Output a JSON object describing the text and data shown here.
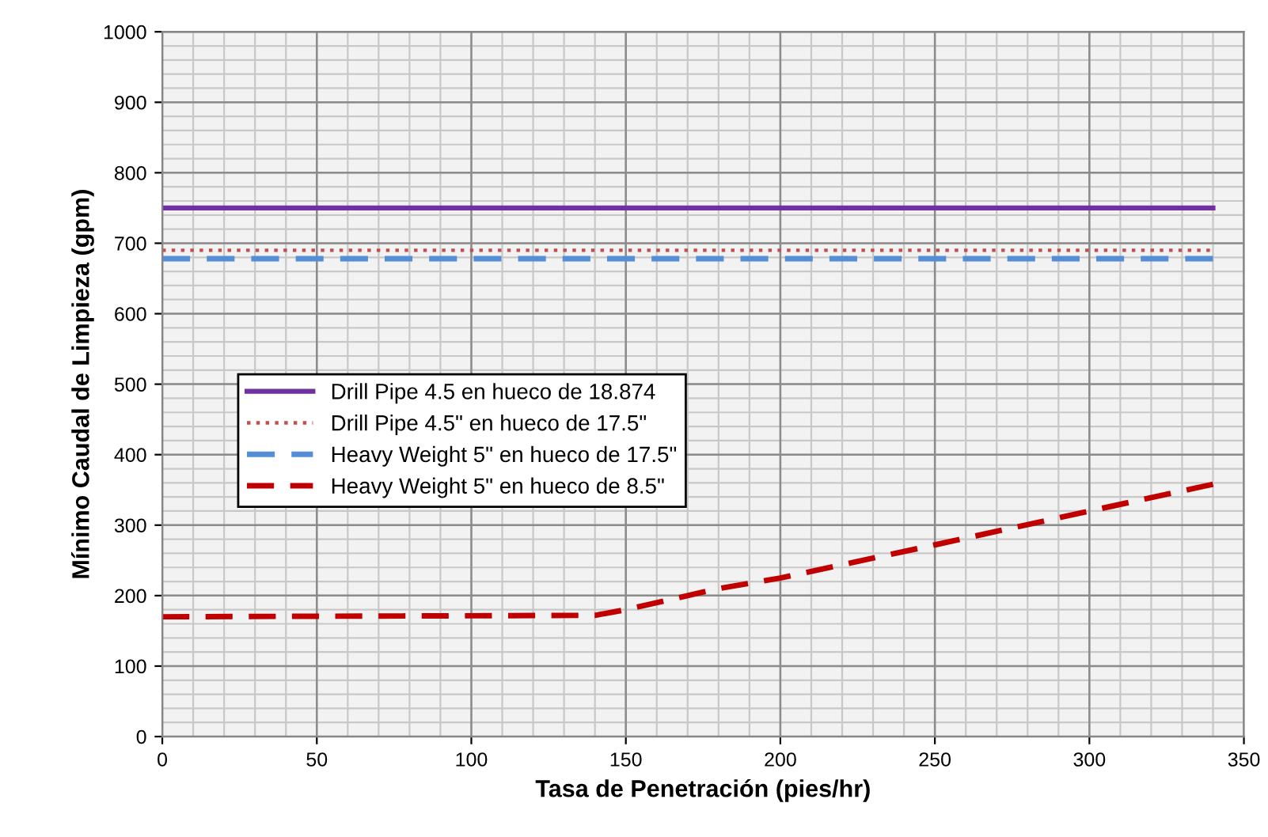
{
  "chart_data": {
    "type": "line",
    "xlabel": "Tasa de Penetración (pies/hr)",
    "ylabel": "Mínimo Caudal de Limpieza (gpm)",
    "xlim": [
      0,
      350
    ],
    "xticks": [
      0,
      50,
      100,
      150,
      200,
      250,
      300,
      350
    ],
    "ylim": [
      0,
      1000
    ],
    "yticks": [
      0,
      100,
      200,
      300,
      400,
      500,
      600,
      700,
      800,
      900,
      1000
    ],
    "grid": true,
    "legend": "center left",
    "marker": "none",
    "series": [
      {
        "name": "Drill Pipe 4.5 en hueco de 18.874",
        "color": "#7030a0",
        "line_style": "solid",
        "x": [
          0,
          340
        ],
        "values": [
          750,
          750
        ]
      },
      {
        "name": "Drill Pipe 4.5\" en hueco de 17.5\"",
        "color": "#c0504d",
        "line_style": "dotted",
        "x": [
          0,
          340
        ],
        "values": [
          690,
          690
        ]
      },
      {
        "name": "Heavy Weight 5\" en hueco de 17.5\"",
        "color": "#558ed5",
        "line_style": "dashed",
        "x": [
          0,
          340
        ],
        "values": [
          678,
          678
        ]
      },
      {
        "name": "Heavy Weight 5\" en hueco de 8.5\"",
        "color": "#c00000",
        "line_style": "dashed",
        "x": [
          0,
          140,
          150,
          180,
          200,
          250,
          300,
          340
        ],
        "values": [
          170,
          172,
          180,
          210,
          225,
          272,
          320,
          358
        ]
      }
    ]
  }
}
